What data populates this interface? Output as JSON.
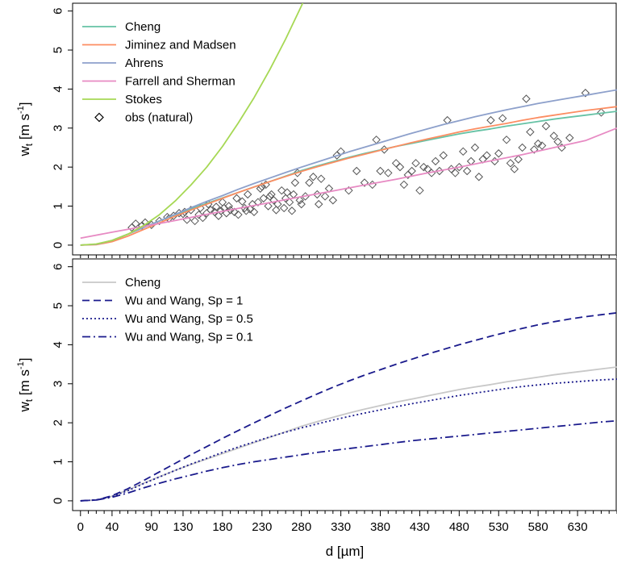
{
  "chart_data": [
    {
      "type": "line",
      "ylabel": "w",
      "ylabel_sub": "t",
      "ylabel_unit_open": " [m s",
      "ylabel_unit_sup": "-1",
      "ylabel_unit_close": "]",
      "xlim": [
        -10,
        680
      ],
      "ylim": [
        -0.25,
        6.2
      ],
      "yticks": [
        "0",
        "1",
        "2",
        "3",
        "4",
        "5",
        "6"
      ],
      "x_tick_labels_shown": false,
      "grid": false,
      "legend_position": "top-left",
      "series": [
        {
          "name": "Cheng",
          "color": "#66c2a5",
          "style": "solid",
          "x": [
            0,
            20,
            40,
            60,
            80,
            100,
            120,
            140,
            160,
            180,
            200,
            220,
            240,
            260,
            280,
            300,
            320,
            340,
            360,
            380,
            400,
            420,
            440,
            460,
            480,
            500,
            520,
            540,
            560,
            580,
            600,
            620,
            640,
            660,
            680
          ],
          "y": [
            0,
            0.02,
            0.12,
            0.28,
            0.45,
            0.62,
            0.78,
            0.93,
            1.07,
            1.21,
            1.35,
            1.49,
            1.63,
            1.77,
            1.91,
            2.03,
            2.14,
            2.25,
            2.35,
            2.44,
            2.53,
            2.61,
            2.69,
            2.77,
            2.85,
            2.92,
            2.98,
            3.05,
            3.11,
            3.17,
            3.23,
            3.28,
            3.33,
            3.38,
            3.43
          ]
        },
        {
          "name": "Jiminez and Madsen",
          "color": "#fc8d62",
          "style": "solid",
          "x": [
            0,
            20,
            40,
            60,
            80,
            100,
            120,
            140,
            160,
            180,
            200,
            220,
            240,
            260,
            280,
            300,
            320,
            340,
            360,
            380,
            400,
            420,
            440,
            460,
            480,
            500,
            520,
            540,
            560,
            580,
            600,
            620,
            640,
            660,
            680
          ],
          "y": [
            0,
            0.01,
            0.09,
            0.23,
            0.4,
            0.57,
            0.74,
            0.9,
            1.05,
            1.2,
            1.35,
            1.49,
            1.63,
            1.76,
            1.89,
            2.01,
            2.12,
            2.23,
            2.33,
            2.43,
            2.53,
            2.63,
            2.72,
            2.81,
            2.9,
            2.98,
            3.05,
            3.12,
            3.2,
            3.27,
            3.33,
            3.39,
            3.45,
            3.5,
            3.55
          ]
        },
        {
          "name": "Ahrens",
          "color": "#8da0cb",
          "style": "solid",
          "x": [
            0,
            20,
            40,
            60,
            80,
            100,
            120,
            140,
            160,
            180,
            200,
            220,
            240,
            260,
            280,
            300,
            320,
            340,
            360,
            380,
            400,
            420,
            440,
            460,
            480,
            500,
            520,
            540,
            560,
            580,
            600,
            620,
            640,
            660,
            680
          ],
          "y": [
            0,
            0.02,
            0.12,
            0.28,
            0.45,
            0.62,
            0.79,
            0.96,
            1.12,
            1.27,
            1.43,
            1.58,
            1.72,
            1.86,
            2.0,
            2.13,
            2.26,
            2.39,
            2.51,
            2.63,
            2.75,
            2.87,
            2.98,
            3.09,
            3.19,
            3.29,
            3.38,
            3.47,
            3.55,
            3.63,
            3.7,
            3.77,
            3.84,
            3.91,
            3.98
          ]
        },
        {
          "name": "Farrell and Sherman",
          "color": "#e78ac3",
          "style": "solid",
          "x": [
            0,
            40,
            80,
            120,
            160,
            200,
            240,
            280,
            320,
            360,
            400,
            440,
            480,
            520,
            560,
            600,
            640,
            680
          ],
          "y": [
            0.18,
            0.33,
            0.48,
            0.63,
            0.79,
            0.94,
            1.09,
            1.24,
            1.39,
            1.54,
            1.69,
            1.85,
            2.0,
            2.16,
            2.32,
            2.5,
            2.68,
            3.0
          ]
        },
        {
          "name": "Stokes",
          "color": "#a6d854",
          "style": "solid",
          "x": [
            0,
            20,
            40,
            60,
            80,
            100,
            120,
            140,
            160,
            180,
            200,
            220,
            240,
            260,
            280,
            300
          ],
          "y": [
            0,
            0.03,
            0.12,
            0.28,
            0.5,
            0.78,
            1.13,
            1.54,
            2.0,
            2.53,
            3.13,
            3.78,
            4.5,
            5.28,
            6.13,
            7.03
          ]
        }
      ],
      "observations": {
        "name": "obs (natural)",
        "marker": "diamond",
        "color": "#555555",
        "x": [
          65,
          70,
          78,
          82,
          90,
          100,
          110,
          112,
          118,
          125,
          130,
          132,
          135,
          140,
          145,
          150,
          152,
          155,
          160,
          162,
          165,
          170,
          172,
          175,
          178,
          180,
          182,
          185,
          188,
          190,
          195,
          198,
          200,
          205,
          208,
          210,
          212,
          215,
          218,
          220,
          225,
          228,
          230,
          232,
          235,
          238,
          240,
          242,
          245,
          248,
          250,
          255,
          258,
          260,
          262,
          265,
          268,
          270,
          272,
          275,
          278,
          280,
          285,
          290,
          295,
          300,
          302,
          305,
          310,
          315,
          320,
          325,
          330,
          340,
          350,
          360,
          370,
          375,
          380,
          385,
          390,
          400,
          405,
          410,
          415,
          420,
          425,
          430,
          435,
          440,
          445,
          450,
          455,
          460,
          465,
          470,
          475,
          480,
          485,
          490,
          495,
          500,
          505,
          510,
          515,
          520,
          525,
          530,
          535,
          540,
          545,
          550,
          555,
          560,
          565,
          570,
          575,
          580,
          585,
          590,
          600,
          605,
          610,
          620,
          640,
          660
        ],
        "y": [
          0.45,
          0.55,
          0.5,
          0.58,
          0.52,
          0.62,
          0.72,
          0.68,
          0.75,
          0.82,
          0.8,
          0.85,
          0.65,
          0.9,
          0.62,
          0.78,
          0.95,
          0.7,
          0.82,
          1.05,
          0.9,
          0.85,
          0.98,
          0.75,
          0.88,
          1.1,
          0.95,
          0.82,
          1.0,
          0.9,
          0.85,
          1.2,
          0.78,
          1.12,
          0.95,
          0.88,
          1.3,
          0.92,
          1.05,
          0.85,
          1.1,
          1.45,
          1.5,
          1.2,
          1.55,
          1.0,
          1.25,
          1.3,
          1.15,
          0.9,
          1.05,
          1.4,
          0.95,
          1.2,
          1.35,
          1.1,
          0.88,
          1.3,
          1.6,
          1.85,
          1.15,
          1.05,
          1.25,
          1.6,
          1.75,
          1.3,
          1.05,
          1.7,
          1.25,
          1.45,
          1.15,
          2.3,
          2.4,
          1.4,
          1.9,
          1.6,
          1.55,
          2.7,
          1.9,
          2.45,
          1.85,
          2.1,
          2.0,
          1.55,
          1.8,
          1.9,
          2.1,
          1.4,
          2.0,
          1.95,
          1.85,
          2.15,
          1.9,
          2.3,
          3.2,
          1.95,
          1.85,
          2.0,
          2.4,
          1.9,
          2.15,
          2.5,
          1.75,
          2.2,
          2.3,
          3.2,
          2.15,
          2.35,
          3.25,
          2.7,
          2.1,
          1.95,
          2.2,
          2.5,
          3.75,
          2.9,
          2.45,
          2.6,
          2.55,
          3.05,
          2.8,
          2.65,
          2.5,
          2.75,
          3.9,
          3.4
        ]
      }
    },
    {
      "type": "line",
      "xlabel": "d [µm]",
      "ylabel": "w",
      "ylabel_sub": "t",
      "ylabel_unit_open": " [m s",
      "ylabel_unit_sup": "-1",
      "ylabel_unit_close": "]",
      "xlim": [
        -10,
        680
      ],
      "ylim": [
        -0.25,
        6.2
      ],
      "xticks": [
        "0",
        "40",
        "90",
        "130",
        "180",
        "230",
        "280",
        "330",
        "380",
        "430",
        "480",
        "530",
        "580",
        "630"
      ],
      "yticks": [
        "0",
        "1",
        "2",
        "3",
        "4",
        "5",
        "6"
      ],
      "grid": false,
      "legend_position": "top-left",
      "series": [
        {
          "name": "Cheng",
          "color": "#c8c8c8",
          "style": "solid",
          "x": [
            0,
            20,
            40,
            60,
            80,
            100,
            120,
            140,
            160,
            180,
            200,
            220,
            240,
            260,
            280,
            300,
            320,
            340,
            360,
            380,
            400,
            420,
            440,
            460,
            480,
            500,
            520,
            540,
            560,
            580,
            600,
            620,
            640,
            660,
            680
          ],
          "y": [
            0,
            0.02,
            0.12,
            0.28,
            0.45,
            0.62,
            0.78,
            0.93,
            1.07,
            1.21,
            1.35,
            1.49,
            1.63,
            1.77,
            1.91,
            2.03,
            2.14,
            2.25,
            2.35,
            2.44,
            2.53,
            2.61,
            2.69,
            2.77,
            2.85,
            2.92,
            2.98,
            3.05,
            3.11,
            3.17,
            3.23,
            3.28,
            3.33,
            3.38,
            3.43
          ]
        },
        {
          "name": "Wu and Wang, Sp = 1",
          "color": "#1a1a8c",
          "style": "dashed",
          "x": [
            0,
            20,
            40,
            60,
            80,
            100,
            120,
            140,
            160,
            180,
            200,
            220,
            240,
            260,
            280,
            300,
            320,
            340,
            360,
            380,
            400,
            420,
            440,
            460,
            480,
            500,
            520,
            540,
            560,
            580,
            600,
            620,
            640,
            660,
            680
          ],
          "y": [
            0,
            0.02,
            0.13,
            0.31,
            0.52,
            0.74,
            0.96,
            1.18,
            1.39,
            1.6,
            1.8,
            2.0,
            2.19,
            2.38,
            2.56,
            2.74,
            2.91,
            3.07,
            3.22,
            3.36,
            3.5,
            3.63,
            3.76,
            3.88,
            4.0,
            4.11,
            4.22,
            4.32,
            4.42,
            4.51,
            4.59,
            4.66,
            4.72,
            4.77,
            4.82
          ]
        },
        {
          "name": "Wu and Wang, Sp = 0.5",
          "color": "#1a1a8c",
          "style": "dotted",
          "x": [
            0,
            20,
            40,
            60,
            80,
            100,
            120,
            140,
            160,
            180,
            200,
            220,
            240,
            260,
            280,
            300,
            320,
            340,
            360,
            380,
            400,
            420,
            440,
            460,
            480,
            500,
            520,
            540,
            560,
            580,
            600,
            620,
            640,
            660,
            680
          ],
          "y": [
            0,
            0.02,
            0.11,
            0.26,
            0.44,
            0.61,
            0.78,
            0.94,
            1.09,
            1.24,
            1.38,
            1.51,
            1.64,
            1.76,
            1.87,
            1.97,
            2.07,
            2.16,
            2.25,
            2.33,
            2.41,
            2.49,
            2.56,
            2.63,
            2.7,
            2.76,
            2.82,
            2.88,
            2.93,
            2.97,
            3.01,
            3.04,
            3.07,
            3.1,
            3.12
          ]
        },
        {
          "name": "Wu and Wang, Sp = 0.1",
          "color": "#1a1a8c",
          "style": "dashdot",
          "x": [
            0,
            20,
            40,
            60,
            80,
            100,
            120,
            140,
            160,
            180,
            200,
            220,
            240,
            260,
            280,
            300,
            320,
            340,
            360,
            380,
            400,
            420,
            440,
            460,
            480,
            500,
            520,
            540,
            560,
            580,
            600,
            620,
            640,
            660,
            680
          ],
          "y": [
            0,
            0.02,
            0.09,
            0.2,
            0.33,
            0.45,
            0.56,
            0.66,
            0.76,
            0.85,
            0.93,
            1.0,
            1.06,
            1.12,
            1.18,
            1.24,
            1.29,
            1.34,
            1.39,
            1.44,
            1.49,
            1.54,
            1.58,
            1.62,
            1.66,
            1.7,
            1.74,
            1.78,
            1.82,
            1.86,
            1.9,
            1.94,
            1.98,
            2.02,
            2.05
          ]
        }
      ]
    }
  ]
}
